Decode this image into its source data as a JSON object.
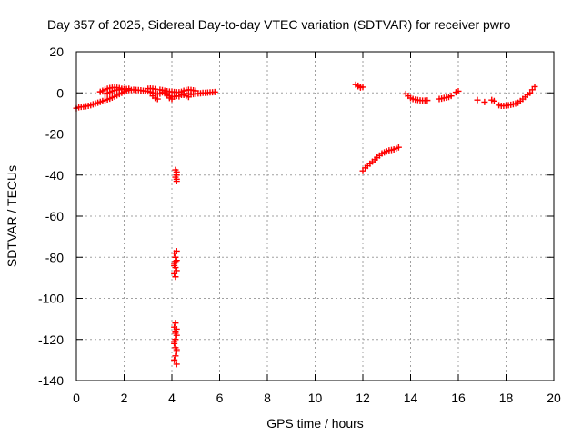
{
  "chart_data": {
    "type": "scatter",
    "title": "Day 357 of 2025, Sidereal Day-to-day VTEC variation (SDTVAR) for receiver pwro",
    "xlabel": "GPS time / hours",
    "ylabel": "SDTVAR / TECUs",
    "xlim": [
      0,
      20
    ],
    "ylim": [
      -140,
      20
    ],
    "xticks": [
      0,
      2,
      4,
      6,
      8,
      10,
      12,
      14,
      16,
      18,
      20
    ],
    "yticks": [
      -140,
      -120,
      -100,
      -80,
      -60,
      -40,
      -20,
      0,
      20
    ],
    "grid": true,
    "marker": "+",
    "color": "#ff0000",
    "series": [
      {
        "name": "SDTVAR",
        "x": [
          0.0,
          0.1,
          0.2,
          0.3,
          0.4,
          0.5,
          0.6,
          0.7,
          0.8,
          0.9,
          1.0,
          1.1,
          1.2,
          1.3,
          1.4,
          1.5,
          1.6,
          1.7,
          1.8,
          1.9,
          2.0,
          2.1,
          2.2,
          2.3,
          2.4,
          2.5,
          2.6,
          2.7,
          2.8,
          2.9,
          3.0,
          3.1,
          3.2,
          3.3,
          3.4,
          3.5,
          3.6,
          3.7,
          3.8,
          3.9,
          4.0,
          4.1,
          4.2,
          4.3,
          4.4,
          4.5,
          4.6,
          4.7,
          4.8,
          4.9,
          5.0,
          5.1,
          5.2,
          5.3,
          5.4,
          5.5,
          5.6,
          5.7,
          5.8,
          1.0,
          1.1,
          1.2,
          1.3,
          1.4,
          1.5,
          1.6,
          1.7,
          1.8,
          1.9,
          2.0,
          1.2,
          1.3,
          1.4,
          1.5,
          1.6,
          1.7,
          1.8,
          1.9,
          2.0,
          2.1,
          2.2,
          3.0,
          3.1,
          3.2,
          3.3,
          3.5,
          3.6,
          3.7,
          3.8,
          3.9,
          4.0,
          4.1,
          4.2,
          4.3,
          4.4,
          4.5,
          4.6,
          4.7,
          4.8,
          4.9,
          5.0,
          3.2,
          3.3,
          3.4,
          3.8,
          3.9,
          4.0,
          4.5,
          4.6,
          4.7,
          4.15,
          4.2,
          4.2,
          4.15,
          4.2,
          4.2,
          4.1,
          4.15,
          4.2,
          4.1,
          4.15,
          4.2,
          4.1,
          4.15,
          4.2,
          4.15,
          4.1,
          4.15,
          4.2,
          4.15,
          4.1,
          4.15,
          4.2,
          4.15,
          4.1,
          4.2,
          4.15,
          4.1,
          4.2,
          4.15,
          4.1,
          4.2,
          11.7,
          11.8,
          11.9,
          12.0,
          11.8,
          11.9,
          12.0,
          12.1,
          12.2,
          12.3,
          12.4,
          12.5,
          12.6,
          12.7,
          12.8,
          12.9,
          13.0,
          13.1,
          13.2,
          13.3,
          13.4,
          13.5,
          13.8,
          13.9,
          14.0,
          14.1,
          14.2,
          14.3,
          14.4,
          14.5,
          14.6,
          14.7,
          15.2,
          15.3,
          15.4,
          15.5,
          15.6,
          15.7,
          15.9,
          16.0,
          16.8,
          17.1,
          17.4,
          17.5,
          17.7,
          17.8,
          17.9,
          18.0,
          18.1,
          18.2,
          18.3,
          18.4,
          18.5,
          18.6,
          18.7,
          18.8,
          18.9,
          19.0,
          19.1,
          19.2
        ],
        "y": [
          -7.5,
          -7.0,
          -6.8,
          -6.7,
          -6.5,
          -6.3,
          -6.0,
          -5.6,
          -5.2,
          -4.8,
          -4.4,
          -4.0,
          -3.6,
          -3.2,
          -2.8,
          -2.3,
          -1.8,
          -1.2,
          -0.6,
          0.0,
          0.6,
          1.0,
          1.3,
          1.4,
          1.5,
          1.4,
          1.3,
          1.2,
          1.0,
          0.9,
          0.7,
          0.4,
          0.0,
          -0.5,
          -0.6,
          -0.4,
          0.2,
          -0.2,
          -0.4,
          -1.5,
          -2.0,
          -1.8,
          -1.5,
          -1.7,
          -1.0,
          -0.5,
          -0.3,
          -0.5,
          -0.8,
          -0.6,
          -0.5,
          -0.3,
          -0.2,
          0.0,
          0.0,
          0.1,
          0.2,
          0.3,
          0.4,
          0.5,
          1.0,
          1.5,
          2.0,
          2.3,
          2.5,
          2.6,
          2.5,
          2.3,
          2.0,
          1.8,
          -0.5,
          -0.2,
          0.3,
          0.8,
          1.2,
          1.4,
          1.5,
          1.6,
          1.7,
          1.8,
          2.0,
          2.0,
          2.1,
          2.0,
          1.8,
          1.5,
          1.3,
          1.0,
          0.8,
          0.6,
          0.5,
          0.4,
          0.3,
          0.3,
          0.5,
          1.0,
          1.3,
          1.5,
          1.4,
          1.2,
          1.0,
          -1.5,
          -2.5,
          -3.0,
          -1.0,
          -2.5,
          -3.0,
          -1.0,
          -1.5,
          -2.0,
          -37.5,
          -38.5,
          -40.0,
          -41.0,
          -42.0,
          -43.0,
          -78,
          -80,
          -81.5,
          -83,
          -85,
          -86.5,
          -88,
          -89.5,
          -77,
          -112,
          -114,
          -116,
          -118,
          -120,
          -122,
          -124,
          -126,
          -128,
          -130,
          -132,
          -82,
          -84,
          -115,
          -117,
          -121,
          -125,
          4.0,
          3.5,
          3.0,
          2.8,
          3.2,
          2.6,
          -38.0,
          -36.5,
          -35.5,
          -34.5,
          -33.5,
          -32.5,
          -31.5,
          -30.5,
          -29.5,
          -29.0,
          -28.5,
          -28.0,
          -27.8,
          -27.5,
          -27.0,
          -26.5,
          -0.5,
          -1.5,
          -2.5,
          -3.0,
          -3.3,
          -3.5,
          -3.7,
          -3.8,
          -3.8,
          -3.7,
          -3.0,
          -2.8,
          -2.5,
          -2.3,
          -2.0,
          -1.5,
          0.3,
          0.8,
          -3.5,
          -4.5,
          -3.5,
          -4.0,
          -6.0,
          -6.3,
          -6.3,
          -6.2,
          -6.0,
          -5.8,
          -5.5,
          -5.2,
          -4.8,
          -4.0,
          -3.0,
          -2.0,
          -1.0,
          0.0,
          1.5,
          3.0
        ]
      }
    ]
  }
}
